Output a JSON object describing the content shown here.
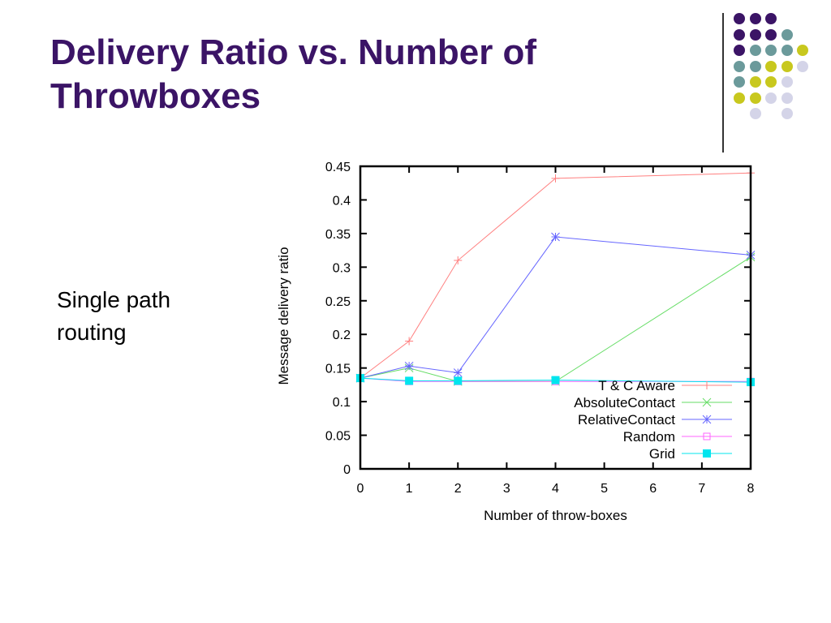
{
  "slide": {
    "title_lines": [
      "Delivery Ratio vs. Number of",
      "Throwboxes"
    ],
    "bullet_lines": [
      "Single path",
      "routing"
    ]
  },
  "theme": {
    "title_color": "#3b1466",
    "dot_colors": {
      "purple": "#3b1466",
      "teal": "#6b9a9b",
      "yellow": "#c8c81e",
      "lavender": "#d4d4e8"
    }
  },
  "chart_data": {
    "type": "line",
    "xlabel": "Number of throw-boxes",
    "ylabel": "Message delivery ratio",
    "xlim": [
      0,
      8
    ],
    "ylim": [
      0,
      0.45
    ],
    "xticks": [
      0,
      1,
      2,
      3,
      4,
      5,
      6,
      7,
      8
    ],
    "yticks": [
      0,
      0.05,
      0.1,
      0.15,
      0.2,
      0.25,
      0.3,
      0.35,
      0.4,
      0.45
    ],
    "ytick_labels": [
      "0",
      "0.05",
      "0.1",
      "0.15",
      "0.2",
      "0.25",
      "0.3",
      "0.35",
      "0.4",
      "0.45"
    ],
    "legend_position": "bottom-right",
    "series": [
      {
        "name": "T & C Aware",
        "color": "#ff8080",
        "marker": "plus",
        "x": [
          0,
          1,
          2,
          4,
          8
        ],
        "y": [
          0.135,
          0.19,
          0.31,
          0.432,
          0.44
        ]
      },
      {
        "name": "AbsoluteContact",
        "color": "#66dd66",
        "marker": "x",
        "x": [
          0,
          1,
          2,
          4,
          8
        ],
        "y": [
          0.135,
          0.15,
          0.13,
          0.13,
          0.315
        ]
      },
      {
        "name": "RelativeContact",
        "color": "#6666ff",
        "marker": "star",
        "x": [
          0,
          1,
          2,
          4,
          8
        ],
        "y": [
          0.135,
          0.153,
          0.143,
          0.345,
          0.318
        ]
      },
      {
        "name": "Random",
        "color": "#ff66ff",
        "marker": "square-open",
        "x": [
          0,
          1,
          2,
          4,
          8
        ],
        "y": [
          0.135,
          0.13,
          0.13,
          0.13,
          0.13
        ]
      },
      {
        "name": "Grid",
        "color": "#00e5ee",
        "marker": "square-filled",
        "x": [
          0,
          1,
          2,
          4,
          8
        ],
        "y": [
          0.135,
          0.131,
          0.131,
          0.132,
          0.129
        ]
      }
    ]
  }
}
